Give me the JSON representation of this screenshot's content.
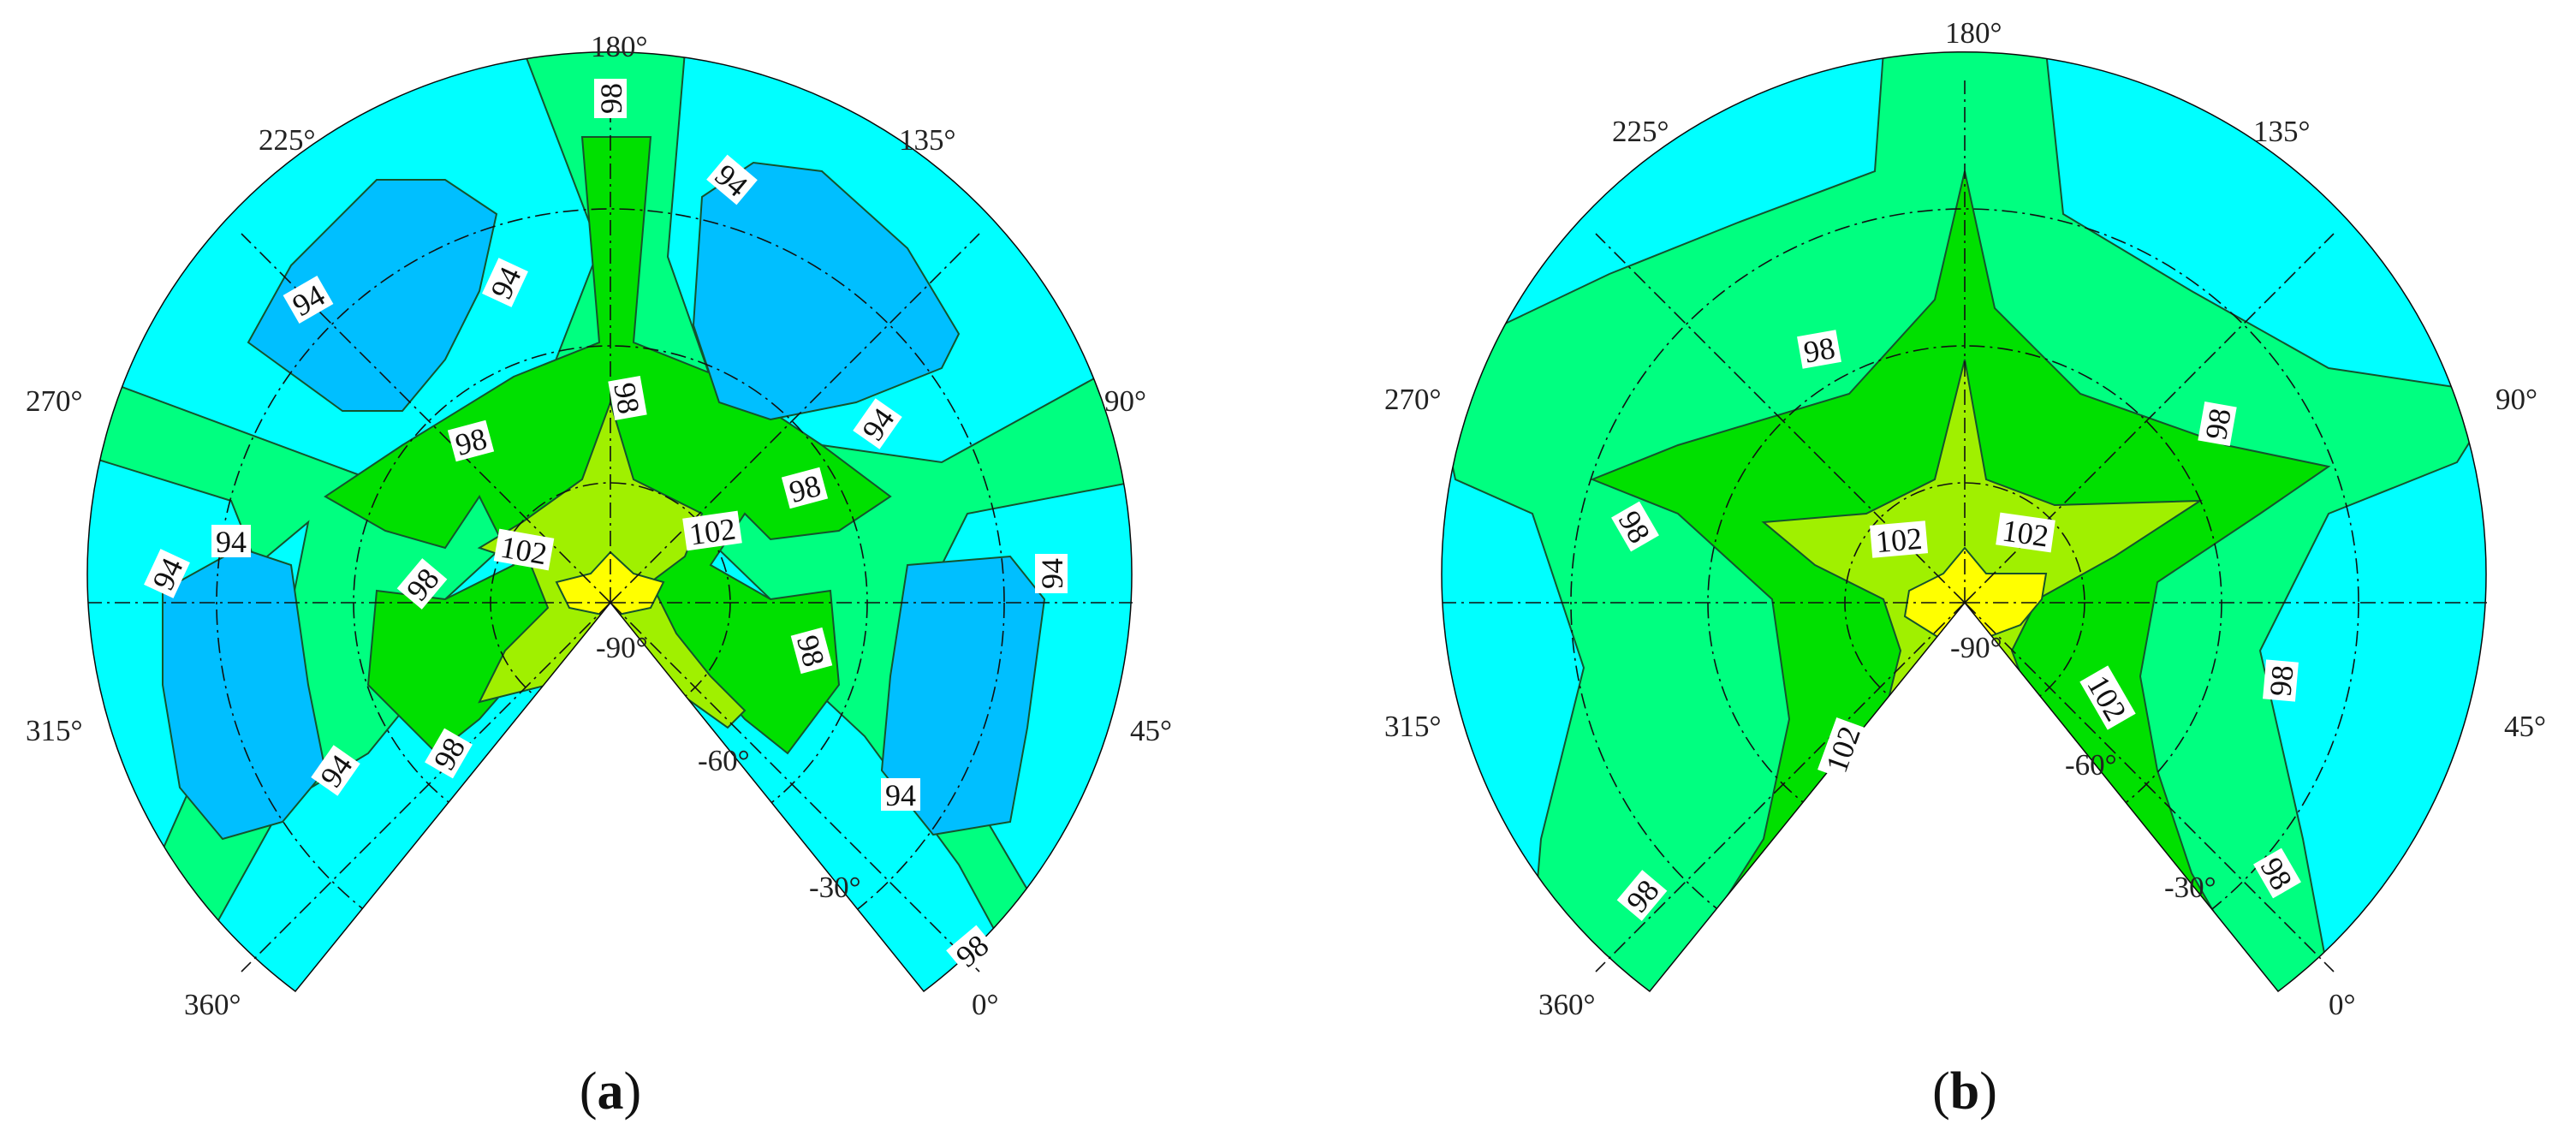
{
  "chart_data": [
    {
      "type": "contour",
      "panel_label": "(a)",
      "panel_letter": "a",
      "angular_tick_labels": [
        "180°",
        "135°",
        "90°",
        "45°",
        "0°",
        "225°",
        "270°",
        "315°",
        "360°"
      ],
      "elevation_tick_labels": [
        "-30°",
        "-60°",
        "-90°"
      ],
      "contour_levels": [
        94,
        98,
        102
      ],
      "colors": {
        "below_94": "#00bfff",
        "94_98": "#00ffff",
        "98_100": "#00ff80",
        "100_102": "#00e000",
        "102_104": "#a0f000",
        "above_104": "#ffff00"
      },
      "contour_labels": [
        "98",
        "94",
        "94",
        "94",
        "98",
        "98",
        "94",
        "98",
        "102",
        "102",
        "94",
        "94",
        "98",
        "94",
        "98",
        "94",
        "98",
        "98",
        "94"
      ]
    },
    {
      "type": "contour",
      "panel_label": "(b)",
      "panel_letter": "b",
      "angular_tick_labels": [
        "180°",
        "135°",
        "90°",
        "45°",
        "0°",
        "225°",
        "270°",
        "315°",
        "360°"
      ],
      "elevation_tick_labels": [
        "-30°",
        "-60°",
        "-90°"
      ],
      "contour_levels": [
        94,
        98,
        102
      ],
      "colors": {
        "below_94": "#00bfff",
        "94_98": "#00ffff",
        "98_100": "#00ff80",
        "100_102": "#00e000",
        "102_104": "#a0f000",
        "above_104": "#ffff00"
      },
      "contour_labels": [
        "98",
        "98",
        "98",
        "102",
        "102",
        "98",
        "102",
        "98",
        "102",
        "98"
      ]
    }
  ]
}
